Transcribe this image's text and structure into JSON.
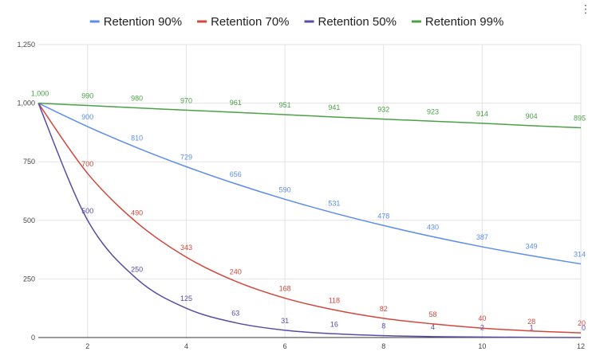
{
  "menu_icon": "kebab-menu-icon",
  "chart_data": {
    "type": "line",
    "title": "",
    "xlabel": "",
    "ylabel": "",
    "x": [
      1,
      2,
      3,
      4,
      5,
      6,
      7,
      8,
      9,
      10,
      11,
      12
    ],
    "x_ticks": [
      2,
      4,
      6,
      8,
      10,
      12
    ],
    "x_tick_labels": [
      "2",
      "4",
      "6",
      "8",
      "10",
      "12"
    ],
    "xlim": [
      1,
      12
    ],
    "ylim": [
      0,
      1250
    ],
    "y_ticks": [
      0,
      250,
      500,
      750,
      1000,
      1250
    ],
    "y_tick_labels": [
      "0",
      "250",
      "500",
      "750",
      "1,000",
      "1,250"
    ],
    "grid": true,
    "legend_position": "top-center",
    "series": [
      {
        "name": "Retention 90%",
        "color": "#5b8def",
        "values": [
          1000,
          900,
          810,
          729,
          656,
          590,
          531,
          478,
          430,
          387,
          349,
          314
        ],
        "labels": [
          "",
          "900",
          "810",
          "729",
          "656",
          "590",
          "531",
          "478",
          "430",
          "387",
          "349",
          "314"
        ]
      },
      {
        "name": "Retention 70%",
        "color": "#d2473c",
        "values": [
          1000,
          700,
          490,
          343,
          240,
          168,
          118,
          82,
          58,
          40,
          28,
          20
        ],
        "labels": [
          "",
          "700",
          "490",
          "343",
          "240",
          "168",
          "118",
          "82",
          "58",
          "40",
          "28",
          "20"
        ]
      },
      {
        "name": "Retention 50%",
        "color": "#5b4aa6",
        "values": [
          1000,
          500,
          250,
          125,
          63,
          31,
          16,
          8,
          4,
          2,
          1,
          0
        ],
        "labels": [
          "",
          "500",
          "250",
          "125",
          "63",
          "31",
          "16",
          "8",
          "4",
          "2",
          "1",
          "0"
        ]
      },
      {
        "name": "Retention 99%",
        "color": "#4aa146",
        "values": [
          1000,
          990,
          980,
          970,
          961,
          951,
          941,
          932,
          923,
          914,
          904,
          895
        ],
        "labels": [
          "1,000",
          "990",
          "980",
          "970",
          "961",
          "951",
          "941",
          "932",
          "923",
          "914",
          "904",
          "895"
        ]
      }
    ]
  }
}
